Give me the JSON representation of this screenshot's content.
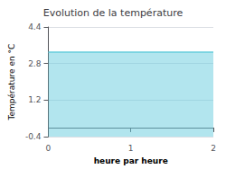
{
  "chart_data": {
    "type": "area",
    "title": "Evolution de la température",
    "xlabel": "heure par heure",
    "ylabel": "Température en °C",
    "x": [
      0,
      2
    ],
    "values": [
      3.3,
      3.3
    ],
    "color": "#66ccdd",
    "xlim": [
      0,
      2
    ],
    "xticks": [
      0,
      1,
      2
    ],
    "ylim": [
      -0.4,
      4.4
    ],
    "yticks": [
      -0.4,
      1.2,
      2.8,
      4.4
    ],
    "grid": true
  }
}
